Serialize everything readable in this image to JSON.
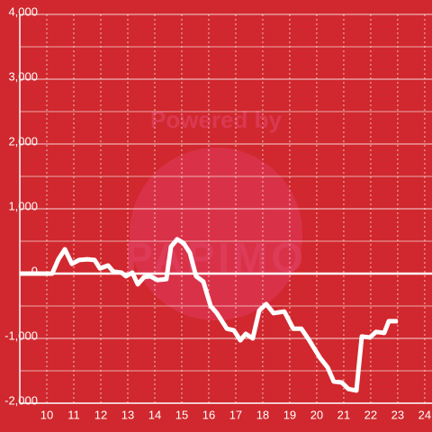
{
  "chart_data": {
    "type": "line",
    "watermark": [
      "Powered by",
      "PAPIMO"
    ],
    "x": [
      9.0,
      10.2,
      10.43,
      10.67,
      10.93,
      11.2,
      11.5,
      11.77,
      11.97,
      12.27,
      12.47,
      12.77,
      12.93,
      13.17,
      13.37,
      13.6,
      13.83,
      14.1,
      14.43,
      14.6,
      14.83,
      15.07,
      15.3,
      15.53,
      15.8,
      16.07,
      16.3,
      16.67,
      16.93,
      17.17,
      17.37,
      17.63,
      17.87,
      18.13,
      18.4,
      18.8,
      19.13,
      19.43,
      19.7,
      20.13,
      20.4,
      20.63,
      20.93,
      21.17,
      21.47,
      21.67,
      21.97,
      22.2,
      22.5,
      22.67,
      23.0
    ],
    "series": [
      {
        "color": "#ffffff",
        "values": [
          0,
          0,
          220,
          375,
          150,
          210,
          220,
          210,
          80,
          125,
          30,
          15,
          -40,
          15,
          -165,
          -55,
          -40,
          -100,
          -85,
          415,
          530,
          470,
          320,
          -40,
          -125,
          -500,
          -610,
          -850,
          -875,
          -1030,
          -930,
          -1000,
          -570,
          -470,
          -610,
          -585,
          -850,
          -850,
          -1015,
          -1305,
          -1445,
          -1665,
          -1680,
          -1780,
          -1805,
          -970,
          -985,
          -900,
          -915,
          -735,
          -735
        ]
      }
    ],
    "xlim": [
      9,
      24.27
    ],
    "xticks": [
      10,
      11,
      12,
      13,
      14,
      15,
      16,
      17,
      18,
      19,
      20,
      21,
      22,
      23,
      24
    ],
    "ylim": [
      -2000,
      4000
    ],
    "yticks": [
      {
        "value": -2000,
        "label": "-2,000"
      },
      {
        "value": -1000,
        "label": "-1,000"
      },
      0,
      {
        "value": 1000,
        "label": "1,000"
      },
      {
        "value": 2000,
        "label": "2,000"
      },
      {
        "value": 3000,
        "label": "3,000"
      },
      {
        "value": 4000,
        "label": "4,000"
      }
    ],
    "grid": true
  }
}
